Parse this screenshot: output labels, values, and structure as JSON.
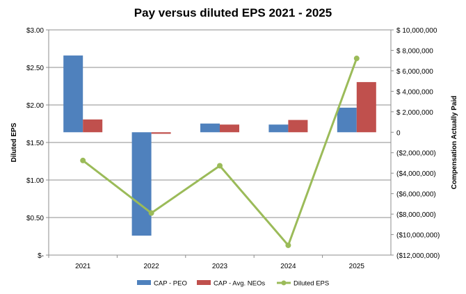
{
  "chart_data": {
    "type": "bar",
    "title": "Pay versus diluted EPS 2021 - 2025",
    "categories": [
      "2021",
      "2022",
      "2023",
      "2024",
      "2025"
    ],
    "ylabel_left": "Diluted EPS",
    "ylabel_right": "Compensation Actually Paid",
    "ylim_left": [
      0,
      3.0
    ],
    "ylim_right": [
      -12000000,
      10000000
    ],
    "left_ticks": [
      "$-",
      "$0.50",
      "$1.00",
      "$1.50",
      "$2.00",
      "$2.50",
      "$3.00"
    ],
    "right_ticks": [
      "($12,000,000)",
      "($10,000,000)",
      "($8,000,000)",
      "($6,000,000)",
      "($4,000,000)",
      "($2,000,000)",
      "0",
      "$ 2,000,000",
      "$ 4,000,000",
      "$ 6,000,000",
      "$ 8,000,000",
      "$ 10,000,000"
    ],
    "grid": true,
    "legend_position": "bottom",
    "series": [
      {
        "name": "CAP - PEO",
        "kind": "bar",
        "axis": "right",
        "color": "#4F81BD",
        "values": [
          7500000,
          -10100000,
          850000,
          750000,
          2400000
        ]
      },
      {
        "name": "CAP - Avg. NEOs",
        "kind": "bar",
        "axis": "right",
        "color": "#C0504D",
        "values": [
          1250000,
          -150000,
          750000,
          1200000,
          4900000
        ]
      },
      {
        "name": "Diluted EPS",
        "kind": "line",
        "axis": "left",
        "color": "#9BBB59",
        "values": [
          1.26,
          0.56,
          1.19,
          0.13,
          2.62
        ]
      }
    ]
  }
}
